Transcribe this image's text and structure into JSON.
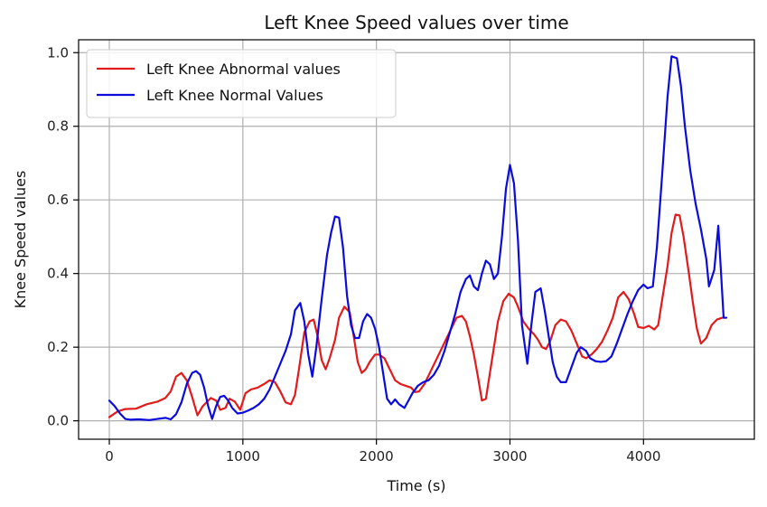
{
  "chart_data": {
    "type": "line",
    "title": "Left Knee Speed values over time",
    "xlabel": "Time (s)",
    "ylabel": "Knee Speed values",
    "xlim": [
      -230,
      4830
    ],
    "ylim": [
      -0.05,
      1.035
    ],
    "xticks": [
      0,
      1000,
      2000,
      3000,
      4000
    ],
    "yticks": [
      0.0,
      0.2,
      0.4,
      0.6,
      0.8,
      1.0
    ],
    "grid": true,
    "legend_position": "top-left",
    "series": [
      {
        "name": "Left Knee Abnormal values",
        "color": "#e31a1c",
        "points": [
          [
            0,
            0.01
          ],
          [
            60,
            0.025
          ],
          [
            120,
            0.032
          ],
          [
            200,
            0.033
          ],
          [
            280,
            0.045
          ],
          [
            360,
            0.052
          ],
          [
            420,
            0.062
          ],
          [
            460,
            0.08
          ],
          [
            500,
            0.12
          ],
          [
            540,
            0.13
          ],
          [
            580,
            0.11
          ],
          [
            620,
            0.065
          ],
          [
            660,
            0.015
          ],
          [
            700,
            0.04
          ],
          [
            760,
            0.062
          ],
          [
            800,
            0.055
          ],
          [
            830,
            0.03
          ],
          [
            870,
            0.035
          ],
          [
            900,
            0.06
          ],
          [
            940,
            0.052
          ],
          [
            980,
            0.03
          ],
          [
            1020,
            0.075
          ],
          [
            1060,
            0.085
          ],
          [
            1110,
            0.09
          ],
          [
            1160,
            0.1
          ],
          [
            1200,
            0.11
          ],
          [
            1240,
            0.105
          ],
          [
            1280,
            0.08
          ],
          [
            1320,
            0.05
          ],
          [
            1360,
            0.045
          ],
          [
            1390,
            0.07
          ],
          [
            1420,
            0.14
          ],
          [
            1460,
            0.24
          ],
          [
            1500,
            0.27
          ],
          [
            1530,
            0.275
          ],
          [
            1560,
            0.23
          ],
          [
            1590,
            0.165
          ],
          [
            1620,
            0.14
          ],
          [
            1650,
            0.17
          ],
          [
            1690,
            0.22
          ],
          [
            1720,
            0.28
          ],
          [
            1760,
            0.31
          ],
          [
            1800,
            0.295
          ],
          [
            1830,
            0.23
          ],
          [
            1860,
            0.16
          ],
          [
            1890,
            0.13
          ],
          [
            1920,
            0.14
          ],
          [
            1950,
            0.16
          ],
          [
            1990,
            0.18
          ],
          [
            2020,
            0.18
          ],
          [
            2060,
            0.17
          ],
          [
            2100,
            0.14
          ],
          [
            2140,
            0.11
          ],
          [
            2180,
            0.1
          ],
          [
            2220,
            0.095
          ],
          [
            2260,
            0.09
          ],
          [
            2290,
            0.078
          ],
          [
            2320,
            0.08
          ],
          [
            2360,
            0.1
          ],
          [
            2400,
            0.13
          ],
          [
            2440,
            0.16
          ],
          [
            2480,
            0.19
          ],
          [
            2520,
            0.22
          ],
          [
            2560,
            0.25
          ],
          [
            2600,
            0.28
          ],
          [
            2640,
            0.285
          ],
          [
            2670,
            0.27
          ],
          [
            2700,
            0.23
          ],
          [
            2730,
            0.18
          ],
          [
            2760,
            0.12
          ],
          [
            2790,
            0.055
          ],
          [
            2820,
            0.06
          ],
          [
            2850,
            0.13
          ],
          [
            2880,
            0.2
          ],
          [
            2910,
            0.27
          ],
          [
            2950,
            0.325
          ],
          [
            2990,
            0.345
          ],
          [
            3030,
            0.335
          ],
          [
            3060,
            0.31
          ],
          [
            3100,
            0.27
          ],
          [
            3140,
            0.25
          ],
          [
            3180,
            0.235
          ],
          [
            3210,
            0.22
          ],
          [
            3240,
            0.2
          ],
          [
            3270,
            0.195
          ],
          [
            3300,
            0.215
          ],
          [
            3340,
            0.26
          ],
          [
            3380,
            0.275
          ],
          [
            3420,
            0.27
          ],
          [
            3460,
            0.245
          ],
          [
            3500,
            0.21
          ],
          [
            3540,
            0.175
          ],
          [
            3570,
            0.17
          ],
          [
            3610,
            0.18
          ],
          [
            3650,
            0.195
          ],
          [
            3690,
            0.215
          ],
          [
            3730,
            0.245
          ],
          [
            3770,
            0.28
          ],
          [
            3810,
            0.335
          ],
          [
            3850,
            0.35
          ],
          [
            3890,
            0.33
          ],
          [
            3930,
            0.29
          ],
          [
            3960,
            0.255
          ],
          [
            4000,
            0.252
          ],
          [
            4040,
            0.258
          ],
          [
            4080,
            0.248
          ],
          [
            4110,
            0.26
          ],
          [
            4140,
            0.33
          ],
          [
            4180,
            0.42
          ],
          [
            4210,
            0.51
          ],
          [
            4240,
            0.56
          ],
          [
            4270,
            0.558
          ],
          [
            4300,
            0.5
          ],
          [
            4340,
            0.4
          ],
          [
            4370,
            0.32
          ],
          [
            4400,
            0.25
          ],
          [
            4430,
            0.21
          ],
          [
            4470,
            0.225
          ],
          [
            4510,
            0.26
          ],
          [
            4550,
            0.275
          ],
          [
            4590,
            0.28
          ],
          [
            4610,
            0.28
          ]
        ]
      },
      {
        "name": "Left Knee Normal Values",
        "color": "#0b0bdc",
        "points": [
          [
            0,
            0.055
          ],
          [
            40,
            0.04
          ],
          [
            80,
            0.02
          ],
          [
            120,
            0.005
          ],
          [
            160,
            0.003
          ],
          [
            220,
            0.004
          ],
          [
            300,
            0.002
          ],
          [
            360,
            0.005
          ],
          [
            420,
            0.008
          ],
          [
            460,
            0.004
          ],
          [
            500,
            0.018
          ],
          [
            540,
            0.05
          ],
          [
            580,
            0.1
          ],
          [
            620,
            0.13
          ],
          [
            650,
            0.135
          ],
          [
            680,
            0.125
          ],
          [
            710,
            0.09
          ],
          [
            740,
            0.04
          ],
          [
            770,
            0.005
          ],
          [
            800,
            0.04
          ],
          [
            830,
            0.065
          ],
          [
            860,
            0.068
          ],
          [
            890,
            0.055
          ],
          [
            920,
            0.035
          ],
          [
            960,
            0.02
          ],
          [
            1000,
            0.022
          ],
          [
            1040,
            0.028
          ],
          [
            1080,
            0.035
          ],
          [
            1120,
            0.045
          ],
          [
            1160,
            0.06
          ],
          [
            1200,
            0.085
          ],
          [
            1240,
            0.12
          ],
          [
            1280,
            0.155
          ],
          [
            1320,
            0.19
          ],
          [
            1360,
            0.235
          ],
          [
            1390,
            0.3
          ],
          [
            1430,
            0.32
          ],
          [
            1460,
            0.27
          ],
          [
            1490,
            0.18
          ],
          [
            1520,
            0.12
          ],
          [
            1550,
            0.2
          ],
          [
            1590,
            0.33
          ],
          [
            1630,
            0.45
          ],
          [
            1660,
            0.51
          ],
          [
            1690,
            0.555
          ],
          [
            1720,
            0.552
          ],
          [
            1750,
            0.47
          ],
          [
            1780,
            0.34
          ],
          [
            1810,
            0.26
          ],
          [
            1840,
            0.225
          ],
          [
            1870,
            0.225
          ],
          [
            1900,
            0.27
          ],
          [
            1930,
            0.29
          ],
          [
            1960,
            0.28
          ],
          [
            1990,
            0.25
          ],
          [
            2020,
            0.2
          ],
          [
            2050,
            0.13
          ],
          [
            2080,
            0.06
          ],
          [
            2110,
            0.045
          ],
          [
            2140,
            0.058
          ],
          [
            2170,
            0.045
          ],
          [
            2210,
            0.035
          ],
          [
            2240,
            0.055
          ],
          [
            2270,
            0.075
          ],
          [
            2310,
            0.095
          ],
          [
            2350,
            0.105
          ],
          [
            2390,
            0.11
          ],
          [
            2430,
            0.125
          ],
          [
            2470,
            0.15
          ],
          [
            2510,
            0.19
          ],
          [
            2550,
            0.24
          ],
          [
            2590,
            0.29
          ],
          [
            2630,
            0.35
          ],
          [
            2670,
            0.385
          ],
          [
            2700,
            0.395
          ],
          [
            2730,
            0.365
          ],
          [
            2760,
            0.355
          ],
          [
            2790,
            0.4
          ],
          [
            2820,
            0.435
          ],
          [
            2850,
            0.425
          ],
          [
            2880,
            0.385
          ],
          [
            2910,
            0.4
          ],
          [
            2940,
            0.5
          ],
          [
            2970,
            0.63
          ],
          [
            3000,
            0.695
          ],
          [
            3030,
            0.645
          ],
          [
            3060,
            0.49
          ],
          [
            3090,
            0.26
          ],
          [
            3130,
            0.155
          ],
          [
            3160,
            0.26
          ],
          [
            3190,
            0.35
          ],
          [
            3230,
            0.36
          ],
          [
            3260,
            0.3
          ],
          [
            3290,
            0.23
          ],
          [
            3320,
            0.16
          ],
          [
            3350,
            0.12
          ],
          [
            3380,
            0.105
          ],
          [
            3420,
            0.105
          ],
          [
            3460,
            0.145
          ],
          [
            3500,
            0.185
          ],
          [
            3530,
            0.2
          ],
          [
            3570,
            0.19
          ],
          [
            3600,
            0.17
          ],
          [
            3640,
            0.162
          ],
          [
            3680,
            0.16
          ],
          [
            3720,
            0.162
          ],
          [
            3760,
            0.175
          ],
          [
            3800,
            0.21
          ],
          [
            3840,
            0.25
          ],
          [
            3880,
            0.29
          ],
          [
            3920,
            0.325
          ],
          [
            3960,
            0.355
          ],
          [
            4000,
            0.37
          ],
          [
            4030,
            0.36
          ],
          [
            4070,
            0.365
          ],
          [
            4100,
            0.47
          ],
          [
            4140,
            0.67
          ],
          [
            4180,
            0.88
          ],
          [
            4210,
            0.99
          ],
          [
            4250,
            0.985
          ],
          [
            4280,
            0.91
          ],
          [
            4310,
            0.8
          ],
          [
            4350,
            0.68
          ],
          [
            4390,
            0.59
          ],
          [
            4430,
            0.52
          ],
          [
            4470,
            0.44
          ],
          [
            4490,
            0.365
          ],
          [
            4530,
            0.41
          ],
          [
            4560,
            0.53
          ],
          [
            4600,
            0.28
          ],
          [
            4620,
            0.28
          ]
        ]
      }
    ]
  }
}
